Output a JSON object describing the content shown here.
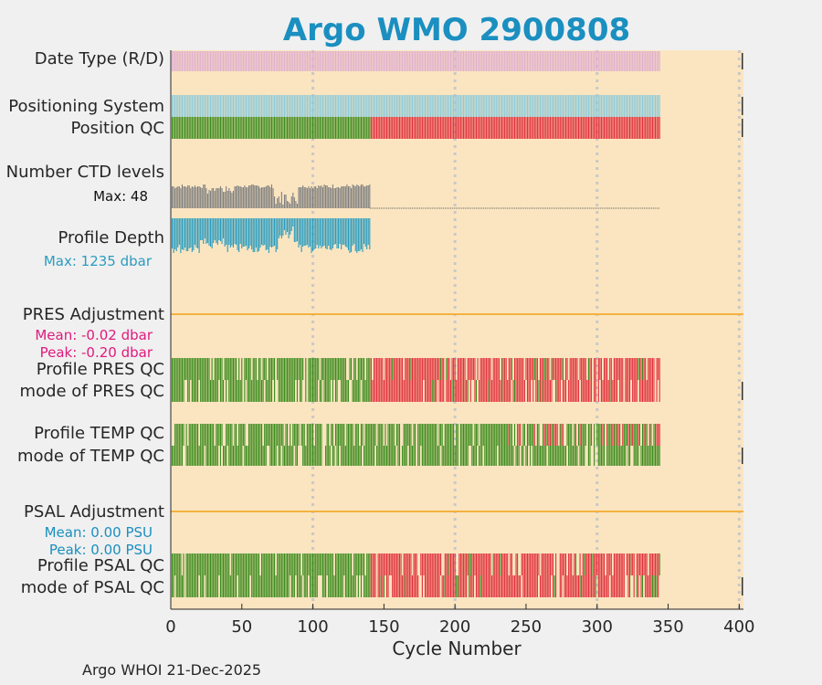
{
  "chart_data": {
    "type": "bar",
    "title": "Argo WMO 2900808",
    "xlabel": "Cycle Number",
    "xlim": [
      0,
      403
    ],
    "x_ticks": [
      0,
      50,
      100,
      150,
      200,
      250,
      300,
      350,
      400
    ],
    "grid_x": [
      100,
      200,
      300,
      400
    ],
    "cycles_total": 344,
    "core_cycles_end": 140,
    "rows": [
      {
        "key": "date_type",
        "label": "Date Type (R/D)",
        "color": "#e0b0cf"
      },
      {
        "key": "positioning_system",
        "label": "Positioning System",
        "color": "#8fcbd9"
      },
      {
        "key": "position_qc",
        "label": "Position QC",
        "colors": {
          "good": "#3c8c1e",
          "bad": "#e0323e"
        }
      },
      {
        "key": "ctd_levels",
        "label": "Number CTD levels",
        "annotation": "Max: 48",
        "color": "#808080"
      },
      {
        "key": "profile_depth",
        "label": "Profile Depth",
        "annotation": "Max: 1235 dbar",
        "color": "#2a9cc0"
      },
      {
        "key": "pres_adjustment",
        "label": "PRES Adjustment",
        "mean": "Mean: -0.02 dbar",
        "peak": "Peak: -0.20 dbar",
        "annot_color": "#e0197d",
        "line_color": "#f4b23e"
      },
      {
        "key": "profile_pres_qc",
        "label": "Profile PRES QC"
      },
      {
        "key": "mode_pres_qc",
        "label": "mode of PRES QC"
      },
      {
        "key": "profile_temp_qc",
        "label": "Profile TEMP QC"
      },
      {
        "key": "mode_temp_qc",
        "label": "mode of TEMP QC"
      },
      {
        "key": "psal_adjustment",
        "label": "PSAL Adjustment",
        "mean": "Mean: 0.00 PSU",
        "peak": "Peak: 0.00 PSU",
        "annot_color": "#1a8fc0",
        "line_color": "#f4b23e"
      },
      {
        "key": "profile_psal_qc",
        "label": "Profile PSAL QC"
      },
      {
        "key": "mode_psal_qc",
        "label": "mode of PSAL QC"
      }
    ],
    "qc_colors": {
      "good": "#3c8c1e",
      "bad": "#e0323e",
      "missing": "#fbe5c0"
    },
    "background_color": "#fbe5c0",
    "title_color": "#1a8fc0"
  },
  "footer": "Argo WHOI 21-Dec-2025"
}
